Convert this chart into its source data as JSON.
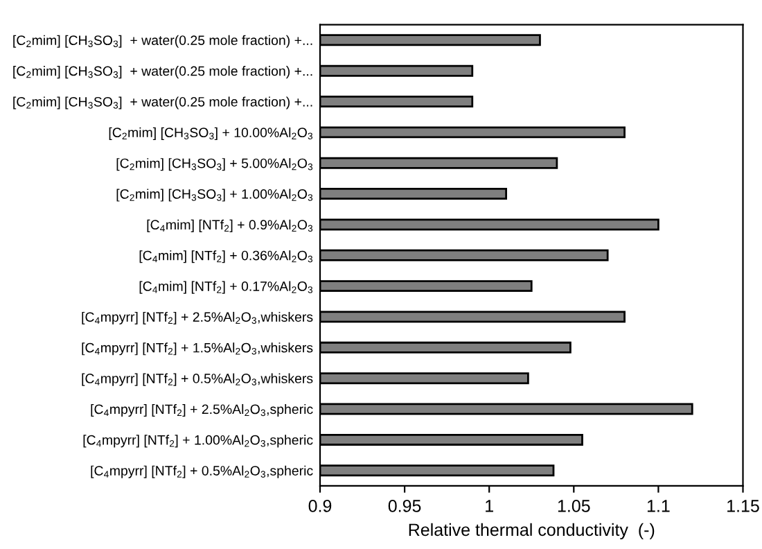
{
  "chart_data": {
    "type": "bar",
    "orientation": "horizontal",
    "xlabel": "Relative thermal conductivity  (-)",
    "categories": [
      "[C$_{2}$mim] [CH$_{3}$SO$_{3}$]  + water(0.25 mole fraction) +...",
      "[C$_{2}$mim] [CH$_{3}$SO$_{3}$]  + water(0.25 mole fraction) +...",
      "[C$_{2}$mim] [CH$_{3}$SO$_{3}$]  + water(0.25 mole fraction) +...",
      "[C$_{2}$mim] [CH$_{3}$SO$_{3}$] + 10.00%Al$_{2}$O$_{3}$",
      "[C$_{2}$mim] [CH$_{3}$SO$_{3}$] + 5.00%Al$_{2}$O$_{3}$",
      "[C$_{2}$mim] [CH$_{3}$SO$_{3}$] + 1.00%Al$_{2}$O$_{3}$",
      "[C$_{4}$mim] [NTf$_{2}$] + 0.9%Al$_{2}$O$_{3}$",
      "[C$_{4}$mim] [NTf$_{2}$] + 0.36%Al$_{2}$O$_{3}$",
      "[C$_{4}$mim] [NTf$_{2}$] + 0.17%Al$_{2}$O$_{3}$",
      "[C$_{4}$mpyrr] [NTf$_{2}$] + 2.5%Al$_{2}$O$_{3}$,whiskers",
      "[C$_{4}$mpyrr] [NTf$_{2}$] + 1.5%Al$_{2}$O$_{3}$,whiskers",
      "[C$_{4}$mpyrr] [NTf$_{2}$] + 0.5%Al$_{2}$O$_{3}$,whiskers",
      "[C$_{4}$mpyrr] [NTf$_{2}$] + 2.5%Al$_{2}$O$_{3}$,spheric",
      "[C$_{4}$mpyrr] [NTf$_{2}$] + 1.00%Al$_{2}$O$_{3}$,spheric",
      "[C$_{4}$mpyrr] [NTf$_{2}$] + 0.5%Al$_{2}$O$_{3}$,spheric"
    ],
    "values": [
      1.03,
      0.99,
      0.99,
      1.08,
      1.04,
      1.01,
      1.1,
      1.07,
      1.025,
      1.08,
      1.048,
      1.023,
      1.12,
      1.055,
      1.038
    ],
    "color": "#7f7f7f",
    "xlim": [
      0.9,
      1.15
    ],
    "xticks": [
      0.9,
      0.95,
      1,
      1.05,
      1.1,
      1.15
    ],
    "grid": false,
    "legend": false
  }
}
